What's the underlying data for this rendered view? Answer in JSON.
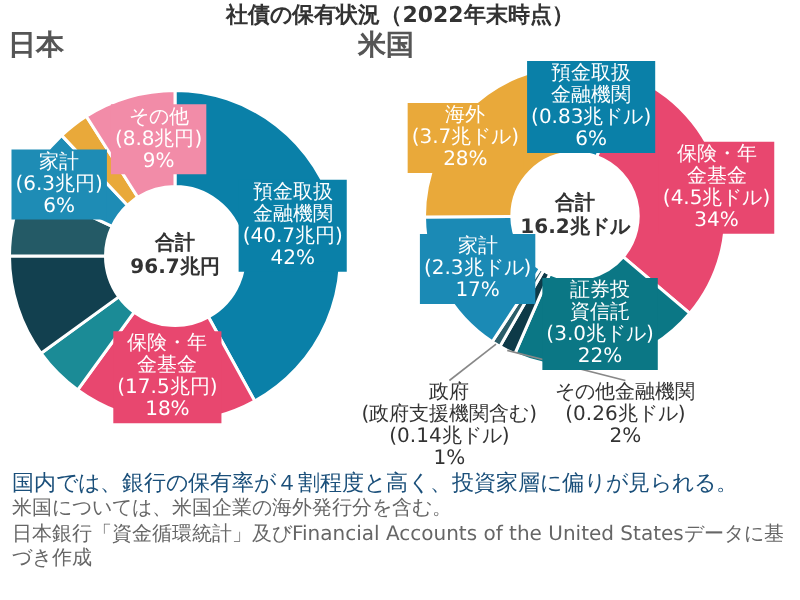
{
  "chart_data": [
    {
      "type": "donut",
      "title": "社債の保有状況（2022年末時点）",
      "subtitle": "日本",
      "categories": [
        "預金取扱金融機関",
        "保険・年金基金",
        null,
        null,
        null,
        "家計",
        null,
        "その他"
      ],
      "values": [
        42,
        18,
        5,
        10,
        7,
        6,
        3,
        9
      ],
      "colors": [
        "#0a80a8",
        "#e8476f",
        "#1b8b96",
        "#12404f",
        "#245a66",
        "#1e8cb5",
        "#e9a93a",
        "#f28ca8"
      ],
      "value_labels": [
        "(40.7兆円) 42%",
        "(17.5兆円) 18%",
        null,
        null,
        null,
        "(6.3兆円) 6%",
        null,
        "(8.8兆円) 9%"
      ],
      "legend": false,
      "annotations": [
        "合計 96.7兆円",
        "国内では、銀行の保有率が４割程度と高く、投資家層に偏りが見られる。",
        "米国については、米国企業の海外発行分を含む。",
        "日本銀行「資金循環統計」及びFinancial Accounts of the United Statesデータに基づき作成"
      ]
    },
    {
      "type": "donut",
      "subtitle": "米国",
      "categories": [
        "預金取扱金融機関",
        "保険・年金基金",
        "証券投資信託",
        "その他金融機関",
        "政府(政府支援機関含む)",
        "家計",
        "海外"
      ],
      "values": [
        0.83,
        4.5,
        3.0,
        0.26,
        0.14,
        2.3,
        3.7
      ],
      "colors": [
        "#0a80a8",
        "#e8476f",
        "#0b7785",
        "#0e3a48",
        "#2b5d69",
        "#1b8ab5",
        "#e9a93a"
      ],
      "value_labels": [
        "(0.83兆ドル) 6%",
        "(4.5兆ドル) 34%",
        "(3.0兆ドル) 22%",
        "(0.26兆ドル) 2%",
        "(0.14兆ドル) 1%",
        "(2.3兆ドル) 17%",
        "(3.7兆ドル) 28%"
      ],
      "legend": false,
      "annotations": [
        "合計 16.2兆ドル"
      ]
    }
  ]
}
